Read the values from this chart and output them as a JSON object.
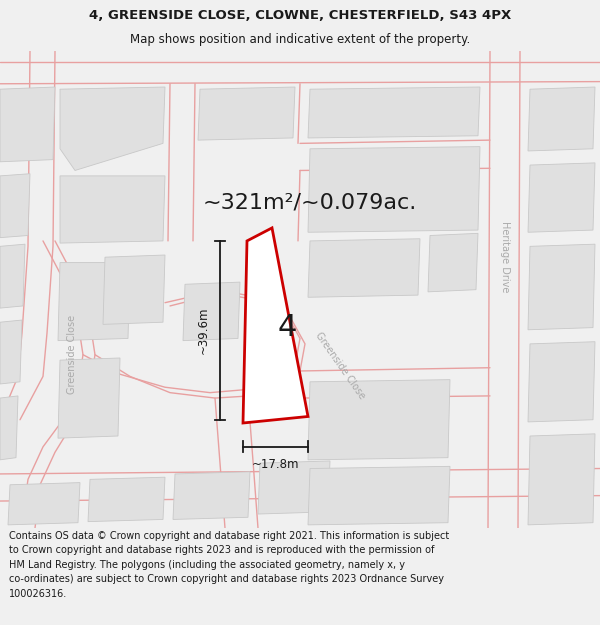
{
  "title_line1": "4, GREENSIDE CLOSE, CLOWNE, CHESTERFIELD, S43 4PX",
  "title_line2": "Map shows position and indicative extent of the property.",
  "area_text": "~321m²/~0.079ac.",
  "dim_height": "~39.6m",
  "dim_width": "~17.8m",
  "plot_number": "4",
  "footer_lines": [
    "Contains OS data © Crown copyright and database right 2021. This information is subject",
    "to Crown copyright and database rights 2023 and is reproduced with the permission of",
    "HM Land Registry. The polygons (including the associated geometry, namely x, y",
    "co-ordinates) are subject to Crown copyright and database rights 2023 Ordnance Survey",
    "100026316."
  ],
  "bg_color": "#f0f0f0",
  "map_bg": "#ffffff",
  "road_color": "#e8a0a0",
  "building_fill": "#e0e0e0",
  "building_edge": "#c8c8c8",
  "plot_edge_color": "#cc0000",
  "plot_fill": "#ffffff",
  "dim_color": "#1a1a1a",
  "text_color": "#1a1a1a",
  "road_label_color": "#aaaaaa",
  "title_fontsize": 9.5,
  "subtitle_fontsize": 8.5,
  "area_fontsize": 16,
  "dim_fontsize": 8.5,
  "plot_num_fontsize": 22,
  "road_label_fontsize": 7,
  "footer_fontsize": 7.0
}
